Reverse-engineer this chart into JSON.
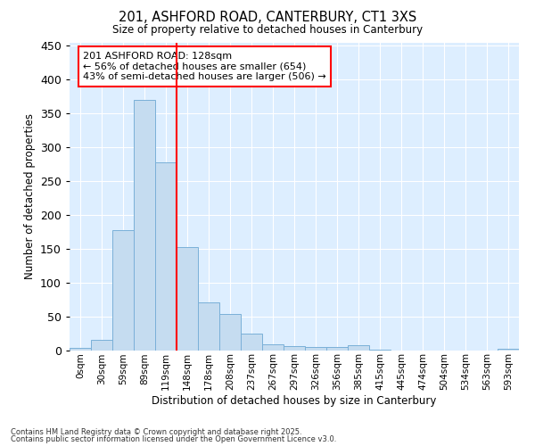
{
  "title1": "201, ASHFORD ROAD, CANTERBURY, CT1 3XS",
  "title2": "Size of property relative to detached houses in Canterbury",
  "xlabel": "Distribution of detached houses by size in Canterbury",
  "ylabel": "Number of detached properties",
  "bar_labels": [
    "0sqm",
    "30sqm",
    "59sqm",
    "89sqm",
    "119sqm",
    "148sqm",
    "178sqm",
    "208sqm",
    "237sqm",
    "267sqm",
    "297sqm",
    "326sqm",
    "356sqm",
    "385sqm",
    "415sqm",
    "445sqm",
    "474sqm",
    "504sqm",
    "534sqm",
    "563sqm",
    "593sqm"
  ],
  "bar_values": [
    3,
    15,
    177,
    370,
    277,
    152,
    70,
    54,
    24,
    9,
    6,
    5,
    5,
    7,
    1,
    0,
    0,
    0,
    0,
    0,
    2
  ],
  "bar_color": "#c5dcf0",
  "bar_edge_color": "#7ab0d8",
  "vline_x_offset": 4.5,
  "vline_color": "red",
  "annotation_text": "201 ASHFORD ROAD: 128sqm\n← 56% of detached houses are smaller (654)\n43% of semi-detached houses are larger (506) →",
  "annotation_box_color": "white",
  "annotation_box_edge": "red",
  "ylim": [
    0,
    455
  ],
  "yticks": [
    0,
    50,
    100,
    150,
    200,
    250,
    300,
    350,
    400,
    450
  ],
  "bg_color": "#ddeeff",
  "footer1": "Contains HM Land Registry data © Crown copyright and database right 2025.",
  "footer2": "Contains public sector information licensed under the Open Government Licence v3.0."
}
